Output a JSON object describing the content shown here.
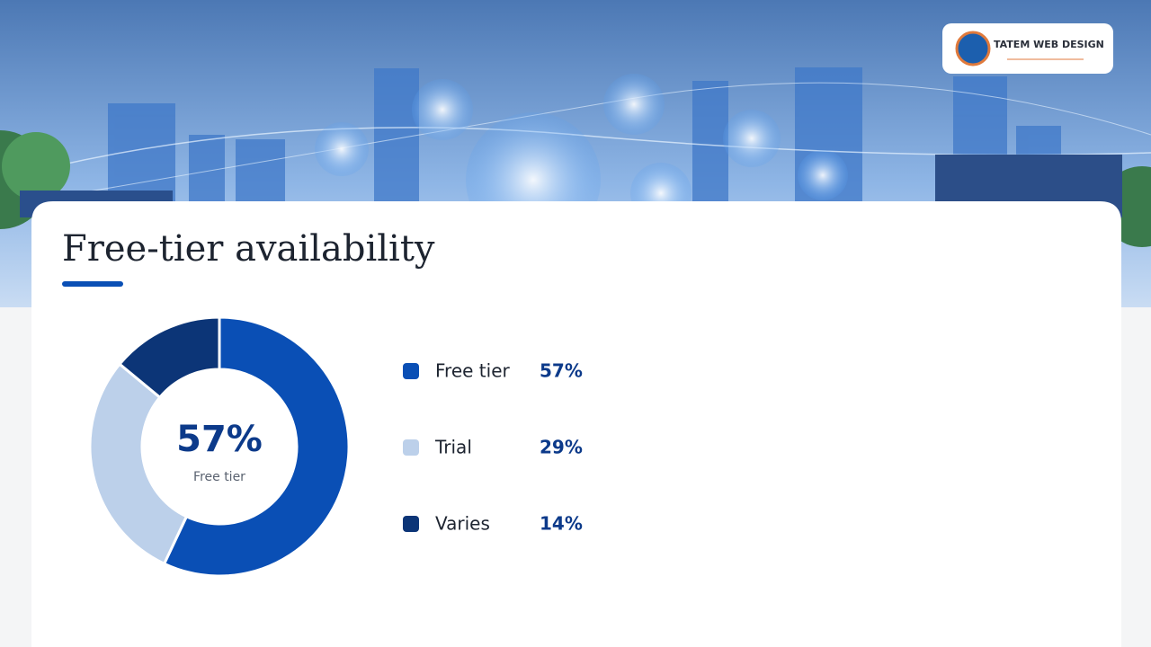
{
  "logo": {
    "text": "TATEM WEB DESIGN"
  },
  "chart_data": {
    "type": "donut",
    "title": "Free-tier availability",
    "categories": [
      "Free tier",
      "Trial",
      "Varies"
    ],
    "values": [
      57,
      29,
      14
    ],
    "value_labels": [
      "57%",
      "29%",
      "14%"
    ],
    "colors": [
      "#0a4fb5",
      "#bcd0ea",
      "#0c3577"
    ]
  }
}
